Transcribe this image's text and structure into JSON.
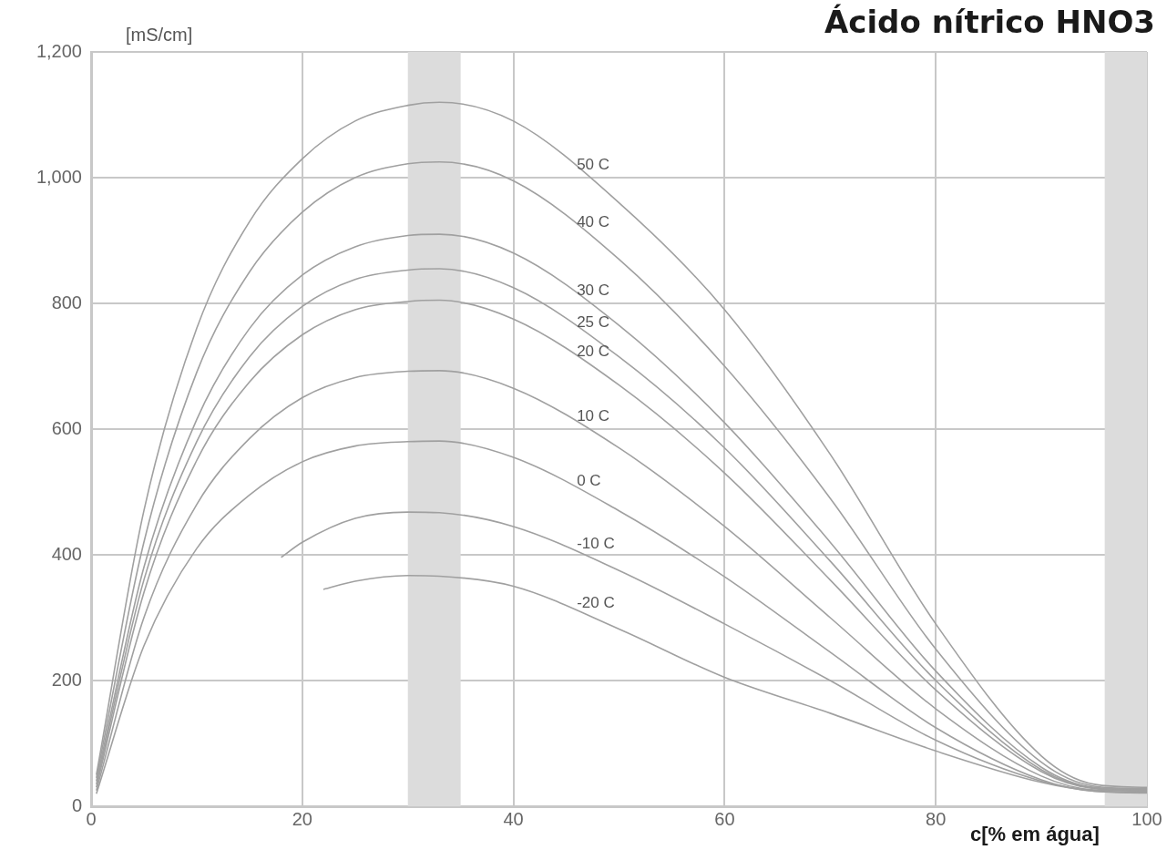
{
  "chart_data": {
    "type": "line",
    "title": "Ácido nítrico HNO3",
    "xlabel": "c[% em água]",
    "ylabel": "[mS/cm]",
    "xlim": [
      0,
      100
    ],
    "xticks": [
      0,
      20,
      40,
      60,
      80,
      100
    ],
    "ylim": [
      0,
      1200
    ],
    "yticks": [
      0,
      200,
      400,
      600,
      800,
      {
        "value": 1000,
        "label": "1,000"
      },
      {
        "value": 1200,
        "label": "1,200"
      }
    ],
    "grid": true,
    "legend": false,
    "marker": "none",
    "line_style": "solid",
    "bands": [
      {
        "axis": "x",
        "from": 30,
        "to": 35,
        "color": "#dcdcdc"
      },
      {
        "axis": "x",
        "from": 96,
        "to": 100,
        "color": "#dcdcdc"
      }
    ],
    "series": [
      {
        "name": "50 C",
        "color": "#a0a0a0",
        "x": [
          0.5,
          5,
          10,
          15,
          20,
          25,
          30,
          33,
          40,
          50,
          60,
          70,
          80,
          90,
          95,
          100
        ],
        "values": [
          50,
          470,
          760,
          930,
          1030,
          1090,
          1115,
          1120,
          1090,
          960,
          790,
          560,
          290,
          80,
          35,
          30
        ]
      },
      {
        "name": "40 C",
        "color": "#a0a0a0",
        "x": [
          0.5,
          5,
          10,
          15,
          20,
          25,
          30,
          33,
          40,
          50,
          60,
          70,
          80,
          90,
          95,
          100
        ],
        "values": [
          45,
          420,
          690,
          850,
          945,
          1000,
          1022,
          1025,
          995,
          870,
          700,
          490,
          250,
          70,
          32,
          28
        ]
      },
      {
        "name": "30 C",
        "color": "#a0a0a0",
        "x": [
          0.5,
          5,
          10,
          15,
          20,
          25,
          30,
          33,
          40,
          50,
          60,
          70,
          80,
          90,
          95,
          100
        ],
        "values": [
          40,
          380,
          615,
          760,
          845,
          890,
          908,
          910,
          880,
          765,
          610,
          420,
          215,
          62,
          30,
          27
        ]
      },
      {
        "name": "25 C",
        "color": "#a0a0a0",
        "x": [
          0.5,
          5,
          10,
          15,
          20,
          25,
          30,
          33,
          40,
          50,
          60,
          70,
          80,
          90,
          95,
          100
        ],
        "values": [
          35,
          360,
          580,
          715,
          795,
          838,
          853,
          855,
          825,
          715,
          570,
          390,
          200,
          58,
          29,
          26
        ]
      },
      {
        "name": "20 C",
        "color": "#a0a0a0",
        "x": [
          0.5,
          5,
          10,
          15,
          20,
          25,
          30,
          33,
          40,
          50,
          60,
          70,
          80,
          90,
          95,
          100
        ],
        "values": [
          30,
          340,
          550,
          675,
          750,
          790,
          803,
          805,
          775,
          670,
          530,
          360,
          185,
          55,
          28,
          25
        ]
      },
      {
        "name": "10 C",
        "color": "#a0a0a0",
        "x": [
          0.5,
          5,
          10,
          15,
          20,
          25,
          30,
          33,
          40,
          50,
          60,
          70,
          80,
          90,
          95,
          100
        ],
        "values": [
          25,
          300,
          480,
          585,
          650,
          682,
          692,
          693,
          665,
          570,
          445,
          300,
          155,
          48,
          26,
          24
        ]
      },
      {
        "name": "0 C",
        "color": "#a0a0a0",
        "x": [
          0.5,
          5,
          10,
          15,
          20,
          25,
          30,
          33,
          40,
          50,
          60,
          70,
          80,
          90,
          95,
          100
        ],
        "values": [
          20,
          255,
          410,
          495,
          548,
          573,
          580,
          581,
          555,
          470,
          365,
          245,
          125,
          42,
          24,
          22
        ]
      },
      {
        "name": "-10 C",
        "color": "#a0a0a0",
        "x": [
          18,
          20,
          25,
          30,
          33,
          40,
          50,
          60,
          70,
          80,
          90,
          95,
          100
        ],
        "values": [
          396,
          420,
          458,
          468,
          467,
          445,
          375,
          290,
          200,
          105,
          40,
          25,
          22
        ]
      },
      {
        "name": "-20 C",
        "color": "#a0a0a0",
        "x": [
          22,
          25,
          30,
          33,
          40,
          50,
          60,
          70,
          80,
          90,
          95,
          100
        ],
        "values": [
          345,
          358,
          367,
          366,
          350,
          282,
          205,
          148,
          88,
          38,
          24,
          21
        ]
      }
    ]
  }
}
